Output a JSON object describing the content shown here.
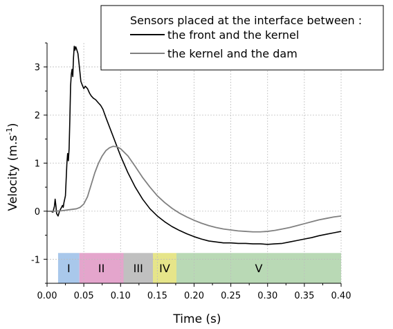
{
  "chart_data": {
    "type": "line",
    "xlabel": "Time (s)",
    "ylabel": "Velocity (m.s",
    "ylabel_sup": "-1",
    "ylabel_close": ")",
    "xlim": [
      0.0,
      0.4
    ],
    "ylim": [
      -1.5,
      3.5
    ],
    "xticks": [
      0.0,
      0.05,
      0.1,
      0.15,
      0.2,
      0.25,
      0.3,
      0.35,
      0.4
    ],
    "xtick_labels": [
      "0.00",
      "0.05",
      "0.10",
      "0.15",
      "0.20",
      "0.25",
      "0.30",
      "0.35",
      "0.40"
    ],
    "yticks": [
      -1,
      0,
      1,
      2,
      3
    ],
    "ytick_labels": [
      "-1",
      "0",
      "1",
      "2",
      "3"
    ],
    "grid": true,
    "legend": {
      "position": "top-right",
      "title": "Sensors placed at the interface between :"
    },
    "series": [
      {
        "name": "the front and the kernel",
        "color": "#000000",
        "points": [
          [
            0.0,
            0.0
          ],
          [
            0.005,
            0.0
          ],
          [
            0.008,
            -0.02
          ],
          [
            0.01,
            0.1
          ],
          [
            0.011,
            0.25
          ],
          [
            0.012,
            0.12
          ],
          [
            0.013,
            -0.05
          ],
          [
            0.015,
            -0.1
          ],
          [
            0.017,
            0.0
          ],
          [
            0.019,
            0.06
          ],
          [
            0.021,
            0.12
          ],
          [
            0.022,
            0.08
          ],
          [
            0.023,
            0.18
          ],
          [
            0.025,
            0.32
          ],
          [
            0.027,
            1.0
          ],
          [
            0.028,
            1.2
          ],
          [
            0.029,
            1.05
          ],
          [
            0.03,
            1.3
          ],
          [
            0.031,
            1.9
          ],
          [
            0.032,
            2.6
          ],
          [
            0.033,
            2.85
          ],
          [
            0.034,
            2.95
          ],
          [
            0.035,
            2.8
          ],
          [
            0.036,
            3.2
          ],
          [
            0.037,
            3.43
          ],
          [
            0.038,
            3.35
          ],
          [
            0.039,
            3.42
          ],
          [
            0.04,
            3.38
          ],
          [
            0.042,
            3.28
          ],
          [
            0.044,
            3.0
          ],
          [
            0.046,
            2.7
          ],
          [
            0.048,
            2.62
          ],
          [
            0.05,
            2.55
          ],
          [
            0.052,
            2.6
          ],
          [
            0.055,
            2.55
          ],
          [
            0.058,
            2.45
          ],
          [
            0.06,
            2.4
          ],
          [
            0.063,
            2.35
          ],
          [
            0.066,
            2.32
          ],
          [
            0.07,
            2.25
          ],
          [
            0.073,
            2.2
          ],
          [
            0.076,
            2.12
          ],
          [
            0.08,
            1.95
          ],
          [
            0.085,
            1.75
          ],
          [
            0.09,
            1.55
          ],
          [
            0.095,
            1.35
          ],
          [
            0.1,
            1.15
          ],
          [
            0.11,
            0.8
          ],
          [
            0.12,
            0.5
          ],
          [
            0.13,
            0.25
          ],
          [
            0.14,
            0.05
          ],
          [
            0.15,
            -0.1
          ],
          [
            0.16,
            -0.22
          ],
          [
            0.17,
            -0.32
          ],
          [
            0.18,
            -0.4
          ],
          [
            0.19,
            -0.47
          ],
          [
            0.2,
            -0.53
          ],
          [
            0.21,
            -0.58
          ],
          [
            0.22,
            -0.62
          ],
          [
            0.23,
            -0.64
          ],
          [
            0.24,
            -0.66
          ],
          [
            0.25,
            -0.66
          ],
          [
            0.26,
            -0.67
          ],
          [
            0.27,
            -0.67
          ],
          [
            0.28,
            -0.68
          ],
          [
            0.29,
            -0.68
          ],
          [
            0.3,
            -0.69
          ],
          [
            0.31,
            -0.68
          ],
          [
            0.32,
            -0.67
          ],
          [
            0.33,
            -0.64
          ],
          [
            0.34,
            -0.61
          ],
          [
            0.35,
            -0.58
          ],
          [
            0.36,
            -0.55
          ],
          [
            0.37,
            -0.51
          ],
          [
            0.38,
            -0.48
          ],
          [
            0.39,
            -0.45
          ],
          [
            0.4,
            -0.42
          ]
        ]
      },
      {
        "name": "the kernel and the dam",
        "color": "#808080",
        "points": [
          [
            0.0,
            0.0
          ],
          [
            0.01,
            0.0
          ],
          [
            0.02,
            0.01
          ],
          [
            0.03,
            0.03
          ],
          [
            0.04,
            0.05
          ],
          [
            0.045,
            0.08
          ],
          [
            0.05,
            0.15
          ],
          [
            0.055,
            0.3
          ],
          [
            0.06,
            0.55
          ],
          [
            0.065,
            0.8
          ],
          [
            0.07,
            1.0
          ],
          [
            0.075,
            1.15
          ],
          [
            0.08,
            1.26
          ],
          [
            0.085,
            1.32
          ],
          [
            0.09,
            1.35
          ],
          [
            0.095,
            1.34
          ],
          [
            0.1,
            1.3
          ],
          [
            0.11,
            1.15
          ],
          [
            0.12,
            0.93
          ],
          [
            0.13,
            0.7
          ],
          [
            0.14,
            0.5
          ],
          [
            0.15,
            0.32
          ],
          [
            0.16,
            0.18
          ],
          [
            0.17,
            0.06
          ],
          [
            0.18,
            -0.04
          ],
          [
            0.19,
            -0.12
          ],
          [
            0.2,
            -0.19
          ],
          [
            0.21,
            -0.25
          ],
          [
            0.22,
            -0.3
          ],
          [
            0.23,
            -0.34
          ],
          [
            0.24,
            -0.37
          ],
          [
            0.25,
            -0.39
          ],
          [
            0.26,
            -0.41
          ],
          [
            0.27,
            -0.42
          ],
          [
            0.28,
            -0.43
          ],
          [
            0.29,
            -0.43
          ],
          [
            0.3,
            -0.42
          ],
          [
            0.31,
            -0.4
          ],
          [
            0.32,
            -0.37
          ],
          [
            0.33,
            -0.34
          ],
          [
            0.34,
            -0.3
          ],
          [
            0.35,
            -0.26
          ],
          [
            0.36,
            -0.22
          ],
          [
            0.37,
            -0.18
          ],
          [
            0.38,
            -0.15
          ],
          [
            0.39,
            -0.12
          ],
          [
            0.4,
            -0.1
          ]
        ]
      }
    ],
    "phases": [
      {
        "label": "I",
        "x0": 0.015,
        "x1": 0.044,
        "color": "#a9c8eb"
      },
      {
        "label": "II",
        "x0": 0.044,
        "x1": 0.104,
        "color": "#e4a5cc"
      },
      {
        "label": "III",
        "x0": 0.104,
        "x1": 0.144,
        "color": "#c0c0c0"
      },
      {
        "label": "IV",
        "x0": 0.144,
        "x1": 0.176,
        "color": "#e6e58a"
      },
      {
        "label": "V",
        "x0": 0.176,
        "x1": 0.4,
        "color": "#b9d9b5"
      }
    ],
    "phase_band_ylim": [
      -1.5,
      -0.87
    ]
  }
}
